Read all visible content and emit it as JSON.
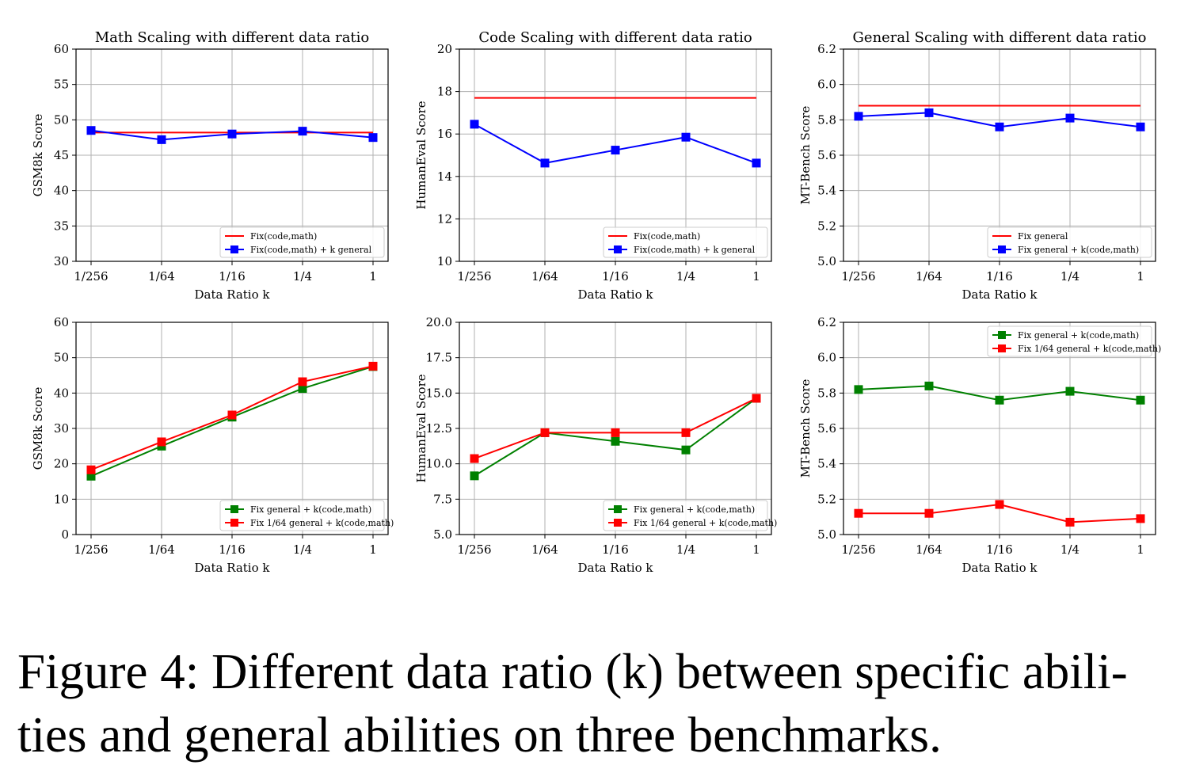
{
  "chart_data": [
    {
      "type": "line",
      "title": "Math Scaling with different data ratio",
      "xlabel": "Data Ratio k",
      "ylabel": "GSM8k Score",
      "categories": [
        "1/256",
        "1/64",
        "1/16",
        "1/4",
        "1"
      ],
      "ylim": [
        30,
        60
      ],
      "yticks": [
        "30",
        "35",
        "40",
        "45",
        "50",
        "55",
        "60"
      ],
      "grid": true,
      "legend_loc": "lower-right",
      "series": [
        {
          "name": "Fix(code,math)",
          "color": "#ff0000",
          "marker": false,
          "values": [
            48.2,
            48.2,
            48.2,
            48.2,
            48.2
          ]
        },
        {
          "name": "Fix(code,math) + k general",
          "color": "#0000ff",
          "marker": true,
          "values": [
            48.5,
            47.2,
            48.0,
            48.4,
            47.5
          ]
        }
      ]
    },
    {
      "type": "line",
      "title": "Code Scaling with different data ratio",
      "xlabel": "Data Ratio k",
      "ylabel": "HumanEval Score",
      "categories": [
        "1/256",
        "1/64",
        "1/16",
        "1/4",
        "1"
      ],
      "ylim": [
        10,
        20
      ],
      "yticks": [
        "10",
        "12",
        "14",
        "16",
        "18",
        "20"
      ],
      "grid": true,
      "legend_loc": "lower-right",
      "series": [
        {
          "name": "Fix(code,math)",
          "color": "#ff0000",
          "marker": false,
          "values": [
            17.7,
            17.7,
            17.7,
            17.7,
            17.7
          ]
        },
        {
          "name": "Fix(code,math) + k general",
          "color": "#0000ff",
          "marker": true,
          "values": [
            16.46,
            14.63,
            15.24,
            15.85,
            14.63
          ]
        }
      ]
    },
    {
      "type": "line",
      "title": "General Scaling with different data ratio",
      "xlabel": "Data Ratio k",
      "ylabel": "MT-Bench Score",
      "categories": [
        "1/256",
        "1/64",
        "1/16",
        "1/4",
        "1"
      ],
      "ylim": [
        5.0,
        6.2
      ],
      "yticks": [
        "5.0",
        "5.2",
        "5.4",
        "5.6",
        "5.8",
        "6.0",
        "6.2"
      ],
      "grid": true,
      "legend_loc": "lower-right",
      "series": [
        {
          "name": "Fix general",
          "color": "#ff0000",
          "marker": false,
          "values": [
            5.88,
            5.88,
            5.88,
            5.88,
            5.88
          ]
        },
        {
          "name": "Fix general + k(code,math)",
          "color": "#0000ff",
          "marker": true,
          "values": [
            5.82,
            5.84,
            5.76,
            5.81,
            5.76
          ]
        }
      ]
    },
    {
      "type": "line",
      "title": "",
      "xlabel": "Data Ratio k",
      "ylabel": "GSM8k Score",
      "categories": [
        "1/256",
        "1/64",
        "1/16",
        "1/4",
        "1"
      ],
      "ylim": [
        0,
        60
      ],
      "yticks": [
        "0",
        "10",
        "20",
        "30",
        "40",
        "50",
        "60"
      ],
      "grid": true,
      "legend_loc": "lower-right",
      "series": [
        {
          "name": "Fix general + k(code,math)",
          "color": "#008000",
          "marker": true,
          "values": [
            16.5,
            25.0,
            33.2,
            41.3,
            47.5
          ]
        },
        {
          "name": "Fix 1/64 general + k(code,math)",
          "color": "#ff0000",
          "marker": true,
          "values": [
            18.3,
            26.2,
            33.8,
            43.2,
            47.6
          ]
        }
      ]
    },
    {
      "type": "line",
      "title": "",
      "xlabel": "Data Ratio k",
      "ylabel": "HumanEval Score",
      "categories": [
        "1/256",
        "1/64",
        "1/16",
        "1/4",
        "1"
      ],
      "ylim": [
        5.0,
        20.0
      ],
      "yticks": [
        "5.0",
        "7.5",
        "10.0",
        "12.5",
        "15.0",
        "17.5",
        "20.0"
      ],
      "grid": true,
      "legend_loc": "lower-right",
      "series": [
        {
          "name": "Fix general + k(code,math)",
          "color": "#008000",
          "marker": true,
          "values": [
            9.15,
            12.2,
            11.59,
            10.98,
            14.63
          ]
        },
        {
          "name": "Fix 1/64 general + k(code,math)",
          "color": "#ff0000",
          "marker": true,
          "values": [
            10.37,
            12.2,
            12.2,
            12.2,
            14.63
          ]
        }
      ]
    },
    {
      "type": "line",
      "title": "",
      "xlabel": "Data Ratio k",
      "ylabel": "MT-Bench Score",
      "categories": [
        "1/256",
        "1/64",
        "1/16",
        "1/4",
        "1"
      ],
      "ylim": [
        5.0,
        6.2
      ],
      "yticks": [
        "5.0",
        "5.2",
        "5.4",
        "5.6",
        "5.8",
        "6.0",
        "6.2"
      ],
      "grid": true,
      "legend_loc": "upper-right",
      "series": [
        {
          "name": "Fix general + k(code,math)",
          "color": "#008000",
          "marker": true,
          "values": [
            5.82,
            5.84,
            5.76,
            5.81,
            5.76
          ]
        },
        {
          "name": "Fix 1/64 general + k(code,math)",
          "color": "#ff0000",
          "marker": true,
          "values": [
            5.12,
            5.12,
            5.17,
            5.07,
            5.09
          ]
        }
      ]
    }
  ],
  "caption": "Figure 4: Different data ratio (k) between specific abili-\nties and general abilities on three benchmarks."
}
